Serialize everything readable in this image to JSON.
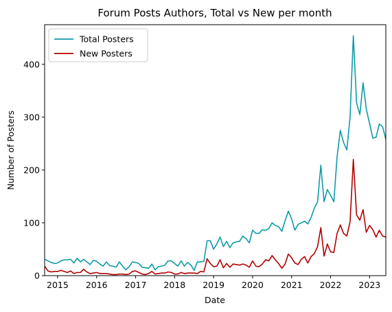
{
  "chart_data": {
    "type": "line",
    "title": "Forum Posts Authors, Total vs New per month",
    "xlabel": "Date",
    "ylabel": "Number of Posters",
    "x_type": "date",
    "xlim": [
      "2014-09",
      "2023-06"
    ],
    "ylim": [
      0,
      475
    ],
    "x_ticks": [
      "2015",
      "2016",
      "2017",
      "2018",
      "2019",
      "2020",
      "2021",
      "2022",
      "2023"
    ],
    "y_ticks": [
      0,
      100,
      200,
      300,
      400
    ],
    "grid": false,
    "legend": "top-left",
    "x": [
      "2014-09",
      "2014-10",
      "2014-11",
      "2014-12",
      "2015-01",
      "2015-02",
      "2015-03",
      "2015-04",
      "2015-05",
      "2015-06",
      "2015-07",
      "2015-08",
      "2015-09",
      "2015-10",
      "2015-11",
      "2015-12",
      "2016-01",
      "2016-02",
      "2016-03",
      "2016-04",
      "2016-05",
      "2016-06",
      "2016-07",
      "2016-08",
      "2016-09",
      "2016-10",
      "2016-11",
      "2016-12",
      "2017-01",
      "2017-02",
      "2017-03",
      "2017-04",
      "2017-05",
      "2017-06",
      "2017-07",
      "2017-08",
      "2017-09",
      "2017-10",
      "2017-11",
      "2017-12",
      "2018-01",
      "2018-02",
      "2018-03",
      "2018-04",
      "2018-05",
      "2018-06",
      "2018-07",
      "2018-08",
      "2018-09",
      "2018-10",
      "2018-11",
      "2018-12",
      "2019-01",
      "2019-02",
      "2019-03",
      "2019-04",
      "2019-05",
      "2019-06",
      "2019-07",
      "2019-08",
      "2019-09",
      "2019-10",
      "2019-11",
      "2019-12",
      "2020-01",
      "2020-02",
      "2020-03",
      "2020-04",
      "2020-05",
      "2020-06",
      "2020-07",
      "2020-08",
      "2020-09",
      "2020-10",
      "2020-11",
      "2020-12",
      "2021-01",
      "2021-02",
      "2021-03",
      "2021-04",
      "2021-05",
      "2021-06",
      "2021-07",
      "2021-08",
      "2021-09",
      "2021-10",
      "2021-11",
      "2021-12",
      "2022-01",
      "2022-02",
      "2022-03",
      "2022-04",
      "2022-05",
      "2022-06",
      "2022-07",
      "2022-08",
      "2022-09",
      "2022-10",
      "2022-11",
      "2022-12",
      "2023-01",
      "2023-02",
      "2023-03",
      "2023-04",
      "2023-05",
      "2023-06"
    ],
    "series": [
      {
        "name": "Total Posters",
        "color": "#0e9aa7",
        "values": [
          31,
          28,
          25,
          23,
          24,
          28,
          30,
          30,
          31,
          24,
          33,
          26,
          31,
          26,
          21,
          29,
          27,
          22,
          18,
          26,
          19,
          18,
          16,
          26,
          18,
          11,
          17,
          26,
          25,
          23,
          16,
          15,
          14,
          22,
          11,
          17,
          18,
          20,
          28,
          28,
          23,
          18,
          28,
          18,
          25,
          20,
          10,
          26,
          26,
          27,
          66,
          66,
          50,
          60,
          73,
          55,
          65,
          53,
          62,
          64,
          65,
          75,
          70,
          62,
          86,
          80,
          80,
          87,
          86,
          89,
          100,
          95,
          93,
          84,
          104,
          122,
          108,
          86,
          97,
          100,
          103,
          98,
          110,
          128,
          140,
          209,
          140,
          163,
          152,
          140,
          225,
          275,
          252,
          238,
          300,
          454,
          327,
          305,
          365,
          315,
          288,
          260,
          262,
          287,
          282,
          258
        ]
      },
      {
        "name": "New Posters",
        "color": "#b00000",
        "values": [
          18,
          9,
          7,
          8,
          8,
          10,
          8,
          6,
          9,
          4,
          6,
          6,
          12,
          7,
          4,
          5,
          6,
          4,
          4,
          4,
          3,
          2,
          2,
          3,
          3,
          2,
          3,
          8,
          9,
          6,
          3,
          2,
          4,
          8,
          3,
          4,
          5,
          5,
          7,
          6,
          3,
          3,
          6,
          4,
          5,
          5,
          5,
          4,
          8,
          7,
          32,
          23,
          17,
          18,
          30,
          15,
          23,
          16,
          22,
          21,
          20,
          22,
          20,
          16,
          28,
          18,
          17,
          22,
          30,
          28,
          38,
          30,
          23,
          14,
          22,
          41,
          34,
          24,
          21,
          31,
          36,
          24,
          36,
          42,
          55,
          91,
          37,
          60,
          45,
          44,
          80,
          96,
          80,
          75,
          102,
          220,
          115,
          105,
          125,
          82,
          95,
          87,
          73,
          86,
          75,
          73
        ]
      }
    ]
  }
}
